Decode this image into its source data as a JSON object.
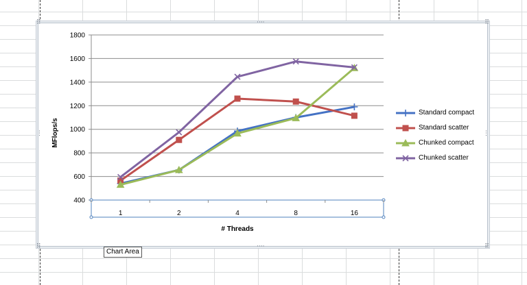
{
  "chart_data": {
    "type": "line",
    "categories": [
      "1",
      "2",
      "4",
      "8",
      "16"
    ],
    "xlabel": "# Threads",
    "ylabel": "MFlops/s",
    "ylim": [
      400,
      1800
    ],
    "yticks": [
      400,
      600,
      800,
      1000,
      1200,
      1400,
      1600,
      1800
    ],
    "grid": true,
    "legend_position": "right",
    "series": [
      {
        "name": "Standard compact",
        "color": "#4472c4",
        "marker": "plus",
        "values": [
          540,
          655,
          985,
          1100,
          1190
        ]
      },
      {
        "name": "Standard scatter",
        "color": "#c0504d",
        "marker": "square",
        "values": [
          565,
          910,
          1260,
          1235,
          1115
        ]
      },
      {
        "name": "Chunked compact",
        "color": "#9bbb59",
        "marker": "triangle",
        "values": [
          530,
          655,
          965,
          1095,
          1520
        ]
      },
      {
        "name": "Chunked scatter",
        "color": "#8064a2",
        "marker": "x",
        "values": [
          595,
          975,
          1445,
          1575,
          1525
        ]
      }
    ]
  },
  "tooltip": {
    "text": "Chart Area"
  }
}
